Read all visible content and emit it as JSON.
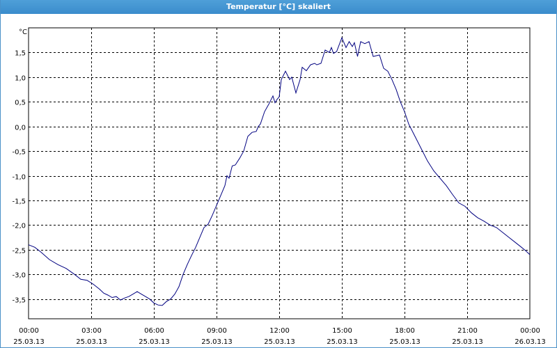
{
  "window": {
    "title": "Temperatur [°C] skaliert"
  },
  "chart_data": {
    "type": "line",
    "title": "Temperatur [°C] skaliert",
    "ylabel": "°C",
    "xlabel": "",
    "ylim": [
      -3.9,
      2.0
    ],
    "grid": true,
    "colors": {
      "line": "#000080",
      "grid": "#000000"
    },
    "y_ticks": [
      {
        "value": 1.5,
        "label": "1,5"
      },
      {
        "value": 1.0,
        "label": "1,0"
      },
      {
        "value": 0.5,
        "label": "0,5"
      },
      {
        "value": 0.0,
        "label": "0,0"
      },
      {
        "value": -0.5,
        "label": "-0,5"
      },
      {
        "value": -1.0,
        "label": "-1,0"
      },
      {
        "value": -1.5,
        "label": "-1,5"
      },
      {
        "value": -2.0,
        "label": "-2,0"
      },
      {
        "value": -2.5,
        "label": "-2,5"
      },
      {
        "value": -3.0,
        "label": "-3,0"
      },
      {
        "value": -3.5,
        "label": "-3,5"
      }
    ],
    "x_ticks": [
      {
        "time": "00:00",
        "date": "25.03.13"
      },
      {
        "time": "03:00",
        "date": "25.03.13"
      },
      {
        "time": "06:00",
        "date": "25.03.13"
      },
      {
        "time": "09:00",
        "date": "25.03.13"
      },
      {
        "time": "12:00",
        "date": "25.03.13"
      },
      {
        "time": "15:00",
        "date": "25.03.13"
      },
      {
        "time": "18:00",
        "date": "25.03.13"
      },
      {
        "time": "21:00",
        "date": "25.03.13"
      },
      {
        "time": "00:00",
        "date": "26.03.13"
      }
    ],
    "x_range_hours": [
      0,
      24
    ],
    "series": [
      {
        "points": [
          [
            0.0,
            -2.4
          ],
          [
            0.3,
            -2.45
          ],
          [
            0.6,
            -2.55
          ],
          [
            1.0,
            -2.7
          ],
          [
            1.4,
            -2.8
          ],
          [
            1.8,
            -2.88
          ],
          [
            2.2,
            -3.0
          ],
          [
            2.5,
            -3.1
          ],
          [
            2.8,
            -3.12
          ],
          [
            3.1,
            -3.2
          ],
          [
            3.4,
            -3.3
          ],
          [
            3.6,
            -3.38
          ],
          [
            3.8,
            -3.42
          ],
          [
            4.0,
            -3.47
          ],
          [
            4.2,
            -3.45
          ],
          [
            4.4,
            -3.52
          ],
          [
            4.6,
            -3.48
          ],
          [
            4.8,
            -3.45
          ],
          [
            5.0,
            -3.4
          ],
          [
            5.2,
            -3.35
          ],
          [
            5.4,
            -3.4
          ],
          [
            5.6,
            -3.45
          ],
          [
            5.8,
            -3.5
          ],
          [
            6.0,
            -3.58
          ],
          [
            6.2,
            -3.62
          ],
          [
            6.4,
            -3.63
          ],
          [
            6.6,
            -3.55
          ],
          [
            6.8,
            -3.5
          ],
          [
            7.0,
            -3.4
          ],
          [
            7.2,
            -3.25
          ],
          [
            7.4,
            -3.0
          ],
          [
            7.6,
            -2.8
          ],
          [
            7.8,
            -2.62
          ],
          [
            8.0,
            -2.45
          ],
          [
            8.2,
            -2.25
          ],
          [
            8.4,
            -2.05
          ],
          [
            8.6,
            -1.98
          ],
          [
            8.8,
            -1.8
          ],
          [
            9.0,
            -1.6
          ],
          [
            9.2,
            -1.4
          ],
          [
            9.4,
            -1.2
          ],
          [
            9.5,
            -1.0
          ],
          [
            9.6,
            -1.05
          ],
          [
            9.75,
            -0.8
          ],
          [
            9.9,
            -0.78
          ],
          [
            10.1,
            -0.65
          ],
          [
            10.3,
            -0.5
          ],
          [
            10.5,
            -0.2
          ],
          [
            10.7,
            -0.12
          ],
          [
            10.9,
            -0.1
          ],
          [
            11.0,
            0.0
          ],
          [
            11.1,
            0.05
          ],
          [
            11.3,
            0.3
          ],
          [
            11.5,
            0.45
          ],
          [
            11.7,
            0.62
          ],
          [
            11.8,
            0.48
          ],
          [
            11.9,
            0.55
          ],
          [
            12.0,
            0.6
          ],
          [
            12.1,
            0.95
          ],
          [
            12.3,
            1.12
          ],
          [
            12.5,
            0.95
          ],
          [
            12.6,
            1.0
          ],
          [
            12.8,
            0.68
          ],
          [
            13.0,
            0.95
          ],
          [
            13.1,
            1.2
          ],
          [
            13.3,
            1.13
          ],
          [
            13.5,
            1.25
          ],
          [
            13.7,
            1.28
          ],
          [
            13.8,
            1.25
          ],
          [
            14.0,
            1.28
          ],
          [
            14.2,
            1.55
          ],
          [
            14.4,
            1.5
          ],
          [
            14.5,
            1.6
          ],
          [
            14.6,
            1.48
          ],
          [
            14.75,
            1.52
          ],
          [
            15.0,
            1.8
          ],
          [
            15.2,
            1.6
          ],
          [
            15.35,
            1.72
          ],
          [
            15.5,
            1.62
          ],
          [
            15.6,
            1.7
          ],
          [
            15.75,
            1.42
          ],
          [
            15.9,
            1.72
          ],
          [
            16.1,
            1.68
          ],
          [
            16.3,
            1.72
          ],
          [
            16.5,
            1.42
          ],
          [
            16.8,
            1.45
          ],
          [
            17.0,
            1.18
          ],
          [
            17.2,
            1.12
          ],
          [
            17.4,
            0.95
          ],
          [
            17.6,
            0.75
          ],
          [
            17.8,
            0.5
          ],
          [
            18.0,
            0.3
          ],
          [
            18.2,
            0.05
          ],
          [
            18.5,
            -0.2
          ],
          [
            18.8,
            -0.45
          ],
          [
            19.1,
            -0.7
          ],
          [
            19.4,
            -0.9
          ],
          [
            19.7,
            -1.05
          ],
          [
            20.0,
            -1.2
          ],
          [
            20.3,
            -1.38
          ],
          [
            20.6,
            -1.55
          ],
          [
            20.9,
            -1.62
          ],
          [
            21.2,
            -1.75
          ],
          [
            21.5,
            -1.85
          ],
          [
            21.8,
            -1.92
          ],
          [
            22.1,
            -2.0
          ],
          [
            22.4,
            -2.05
          ],
          [
            22.7,
            -2.15
          ],
          [
            23.0,
            -2.25
          ],
          [
            23.3,
            -2.35
          ],
          [
            23.6,
            -2.45
          ],
          [
            23.8,
            -2.52
          ],
          [
            24.0,
            -2.6
          ]
        ]
      }
    ]
  }
}
